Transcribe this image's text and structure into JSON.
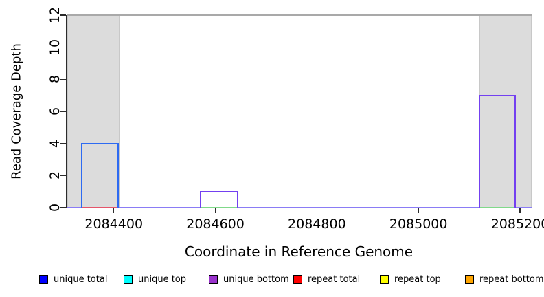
{
  "figure": {
    "background": "#ffffff"
  },
  "chart_data": {
    "type": "area",
    "subtype": "genome-coverage-step-plot",
    "title": "",
    "xlabel": "Coordinate in Reference Genome",
    "ylabel": "Read Coverage Depth",
    "xlim": [
      2084307,
      2085223
    ],
    "ylim": [
      0,
      12
    ],
    "xticks": {
      "values": [
        2084400,
        2084600,
        2084800,
        2085000,
        2085200
      ],
      "labels": [
        "2084400",
        "2084600",
        "2084800",
        "2085000",
        "2085200"
      ]
    },
    "yticks": {
      "values": [
        0,
        2,
        4,
        6,
        8,
        10,
        12
      ],
      "labels": [
        "0",
        "2",
        "4",
        "6",
        "8",
        "10",
        "12"
      ]
    },
    "grid": false,
    "legend_position": "bottom",
    "top_rule": {
      "y": 12
    },
    "colors": {
      "region_fill": "#dcdcdc",
      "region_edge": "#c8c8c8",
      "rule": "#a9a9a9",
      "axis": "#2b2b2b",
      "text": "#000000"
    },
    "shaded_regions": [
      {
        "x1": 2084308,
        "x2": 2084411
      },
      {
        "x1": 2085120,
        "x2": 2085223
      }
    ],
    "coverage_blocks": [
      {
        "series": "unique total",
        "color": "#2e6bf2",
        "x1": 2084337,
        "x2": 2084408,
        "depth": 4
      },
      {
        "series": "unique bottom",
        "color": "#7340f0",
        "x1": 2084571,
        "x2": 2084644,
        "depth": 1
      },
      {
        "series": "unique bottom",
        "color": "#7340f0",
        "x1": 2085120,
        "x2": 2085190,
        "depth": 7
      }
    ],
    "baseline_segments": [
      {
        "color": "#8a7cf5",
        "x1": 2084307,
        "x2": 2084337
      },
      {
        "color": "#e5556b",
        "x1": 2084337,
        "x2": 2084408
      },
      {
        "color": "#8a7cf5",
        "x1": 2084408,
        "x2": 2084571
      },
      {
        "color": "#80d98a",
        "x1": 2084571,
        "x2": 2084644
      },
      {
        "color": "#8a7cf5",
        "x1": 2084644,
        "x2": 2085120
      },
      {
        "color": "#80d98a",
        "x1": 2085120,
        "x2": 2085190
      },
      {
        "color": "#8a7cf5",
        "x1": 2085190,
        "x2": 2085223
      }
    ],
    "legend": [
      {
        "label": "unique total",
        "color": "#0000ff"
      },
      {
        "label": "unique top",
        "color": "#00ffff"
      },
      {
        "label": "unique bottom",
        "color": "#9932cc"
      },
      {
        "label": "repeat total",
        "color": "#ff0000"
      },
      {
        "label": "repeat top",
        "color": "#ffff00"
      },
      {
        "label": "repeat bottom",
        "color": "#ffa500"
      }
    ]
  }
}
